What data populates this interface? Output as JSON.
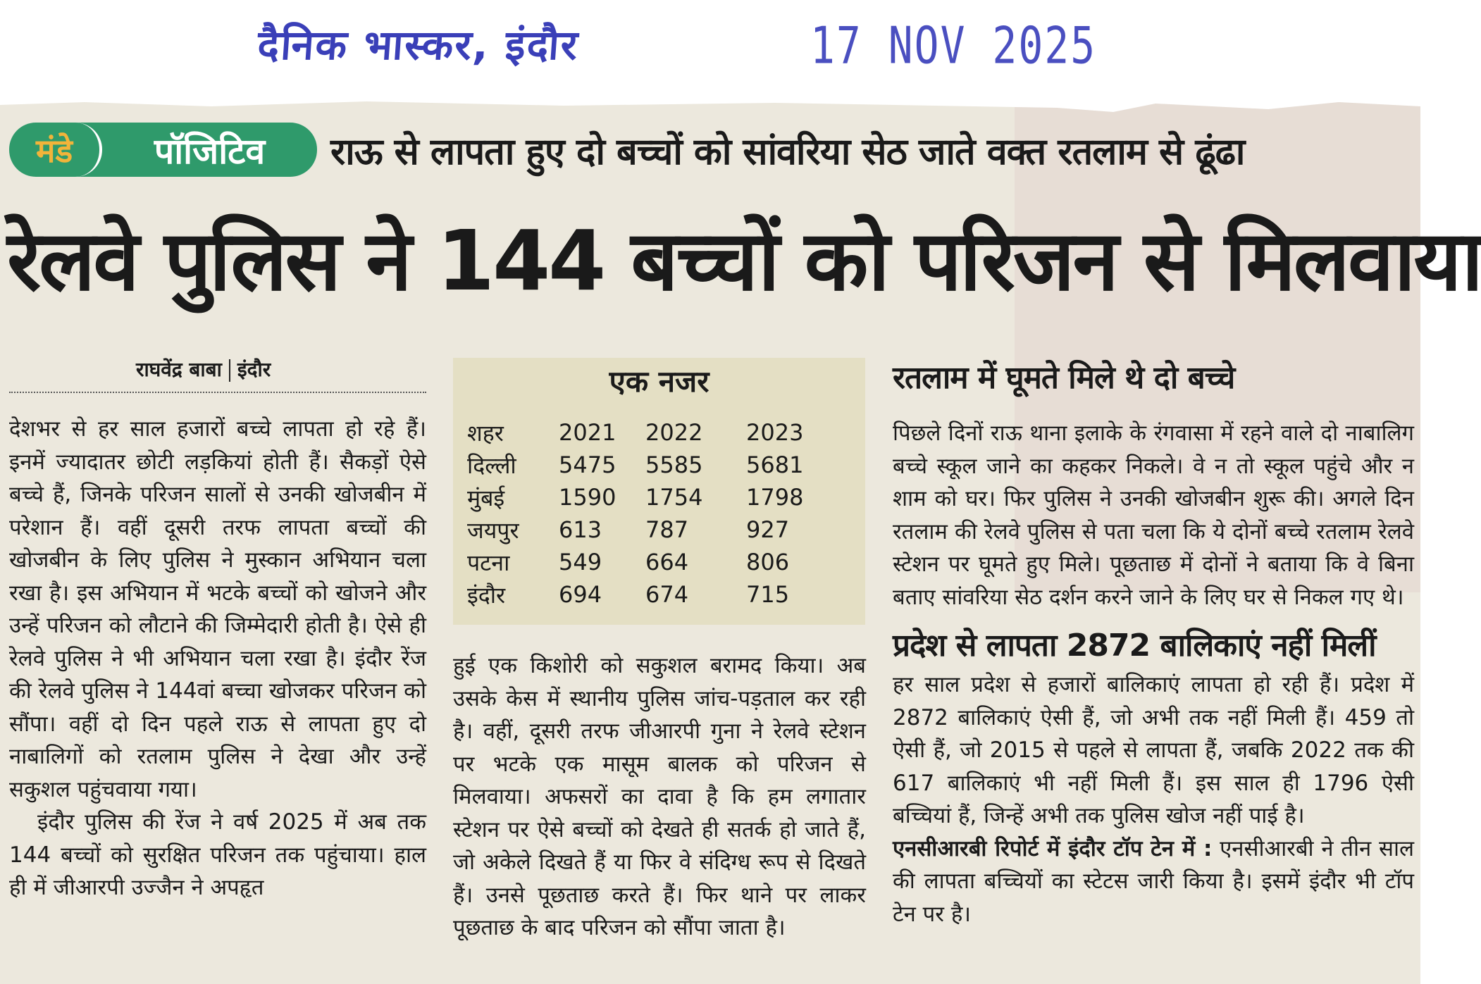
{
  "stamp": {
    "paper": "दैनिक भास्कर, इंदौर",
    "date": "17 NOV 2025"
  },
  "badge": {
    "monday": "मंडे",
    "positive": "पॉजिटिव",
    "color": "#2f9a6b",
    "accent": "#f2b43a"
  },
  "kicker": "राऊ से लापता हुए दो बच्चों को सांवरिया सेठ जाते वक्त रतलाम से ढूंढा",
  "headline": "रेलवे पुलिस ने 144 बच्चों को परिजन से मिलवाया",
  "byline": {
    "author": "राघवेंद्र बाबा",
    "place": "इंदौर"
  },
  "col1": {
    "p1": "देशभर से हर साल हजारों बच्चे लापता हो रहे हैं। इनमें ज्यादातर छोटी लड़कियां होती हैं। सैकड़ों ऐसे बच्चे हैं, जिनके परिजन सालों से उनकी खोजबीन में परेशान हैं। वहीं दूसरी तरफ लापता बच्चों की खोजबीन के लिए पुलिस ने मुस्कान अभियान चला रखा है। इस अभियान में भटके बच्चों को खोजने और उन्हें परिजन को लौटाने की जिम्मेदारी होती है। ऐसे ही रेलवे पुलिस ने भी अभियान चला रखा है। इंदौर रेंज की रेलवे पुलिस ने 144वां बच्चा खोजकर परिजन को सौंपा। वहीं दो दिन पहले राऊ से लापता हुए दो नाबालिगों को रतलाम पुलिस ने देखा और उन्हें सकुशल पहुंचवाया गया।",
    "p2": "इंदौर पुलिस की रेंज ने वर्ष 2025 में अब तक 144 बच्चों को सुरक्षित परिजन तक पहुंचाया। हाल ही में जीआरपी उज्जैन ने अपहृत"
  },
  "glance": {
    "title": "एक नजर",
    "header": [
      "शहर",
      "2021",
      "2022",
      "2023"
    ],
    "rows": [
      [
        "दिल्ली",
        "5475",
        "5585",
        "5681"
      ],
      [
        "मुंबई",
        "1590",
        "1754",
        "1798"
      ],
      [
        "जयपुर",
        "613",
        "787",
        "927"
      ],
      [
        "पटना",
        "549",
        "664",
        "806"
      ],
      [
        "इंदौर",
        "694",
        "674",
        "715"
      ]
    ]
  },
  "col2": {
    "p1": "हुई एक किशोरी को सकुशल बरामद किया। अब उसके केस में स्थानीय पुलिस जांच-पड़ताल कर रही है। वहीं, दूसरी तरफ जीआरपी गुना ने रेलवे स्टेशन पर भटके एक मासूम बालक को परिजन से मिलवाया। अफसरों का दावा है कि हम लगातार स्टेशन पर ऐसे बच्चों को देखते ही सतर्क हो जाते हैं, जो अकेले दिखते हैं या फिर वे संदिग्ध रूप से दिखते हैं। उनसे पूछताछ करते हैं। फिर थाने पर लाकर पूछताछ के बाद परिजन को सौंपा जाता है।"
  },
  "col3": {
    "subhead1": "रतलाम में घूमते मिले थे दो बच्चे",
    "p1": "पिछले दिनों राऊ थाना इलाके के रंगवासा में रहने वाले दो नाबालिग बच्चे स्कूल जाने का कहकर निकले। वे न तो स्कूल पहुंचे और न शाम को घर। फिर पुलिस ने उनकी खोजबीन शुरू की। अगले दिन रतलाम की रेलवे पुलिस से पता चला कि ये दोनों बच्चे रतलाम रेलवे स्टेशन पर घूमते हुए मिले। पूछताछ में दोनों ने बताया कि वे बिना बताए सांवरिया सेठ दर्शन करने जाने के लिए घर से निकल गए थे।",
    "subhead2": "प्रदेश से लापता 2872 बालिकाएं नहीं मिलीं",
    "p2": "हर साल प्रदेश से हजारों बालिकाएं लापता हो रही हैं। प्रदेश में 2872 बालिकाएं ऐसी हैं, जो अभी तक नहीं मिली हैं। 459 तो ऐसी हैं, जो 2015 से पहले से लापता हैं, जबकि 2022 तक की 617 बालिकाएं भी नहीं मिली हैं। इस साल ही 1796 ऐसी बच्चियां हैं, जिन्हें अभी तक पुलिस खोज नहीं पाई है।",
    "p3_lead": "एनसीआरबी रिपोर्ट में इंदौर टॉप टेन में :",
    "p3": " एनसीआरबी ने तीन साल की लापता बच्चियों का स्टेटस जारी किया है। इसमें इंदौर भी टॉप टेन पर है।"
  }
}
